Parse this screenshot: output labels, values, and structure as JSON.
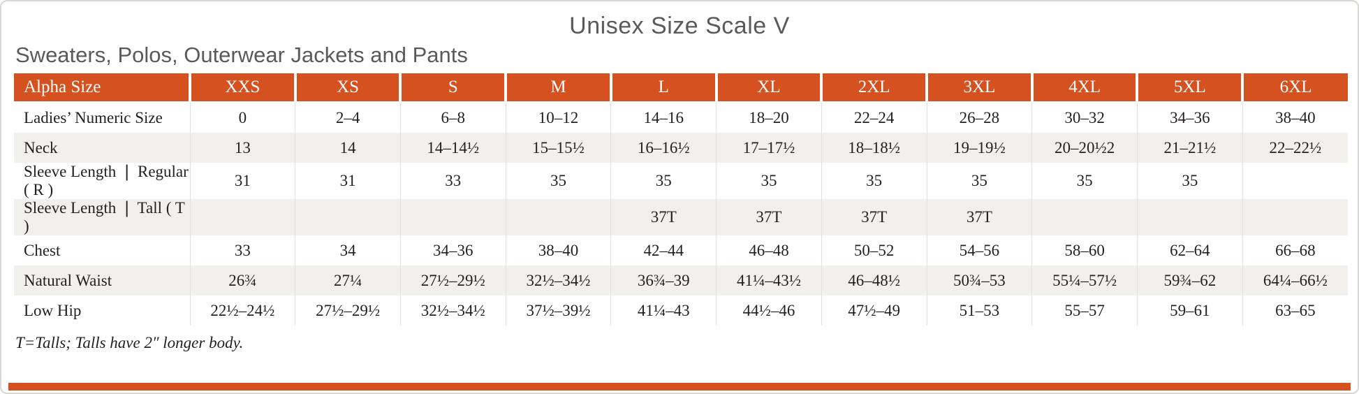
{
  "page": {
    "title": "Unisex Size Scale V",
    "subtitle": "Sweaters, Polos, Outerwear Jackets and Pants",
    "footnote": "T=Talls; Talls have 2″ longer body."
  },
  "colors": {
    "accent_orange": "#d5511f",
    "row_alternate": "#f2f0ed",
    "body_text": "#231f20",
    "heading_gray": "#595a5c"
  },
  "table": {
    "header": [
      "Alpha Size",
      "XXS",
      "XS",
      "S",
      "M",
      "L",
      "XL",
      "2XL",
      "3XL",
      "4XL",
      "5XL",
      "6XL"
    ],
    "rows": [
      {
        "label": "Ladies’ Numeric Size",
        "values": [
          "0",
          "2–4",
          "6–8",
          "10–12",
          "14–16",
          "18–20",
          "22–24",
          "26–28",
          "30–32",
          "34–36",
          "38–40"
        ]
      },
      {
        "label": "Neck",
        "values": [
          "13",
          "14",
          "14–14½",
          "15–15½",
          "16–16½",
          "17–17½",
          "18–18½",
          "19–19½",
          "20–20½2",
          "21–21½",
          "22–22½"
        ]
      },
      {
        "label": "Sleeve Length ❘ Regular ( R )",
        "values": [
          "31",
          "31",
          "33",
          "35",
          "35",
          "35",
          "35",
          "35",
          "35",
          "35",
          ""
        ]
      },
      {
        "label": "Sleeve Length ❘ Tall ( T )",
        "values": [
          "",
          "",
          "",
          "",
          "37T",
          "37T",
          "37T",
          "37T",
          "",
          "",
          ""
        ]
      },
      {
        "label": "Chest",
        "values": [
          "33",
          "34",
          "34–36",
          "38–40",
          "42–44",
          "46–48",
          "50–52",
          "54–56",
          "58–60",
          "62–64",
          "66–68"
        ]
      },
      {
        "label": "Natural Waist",
        "values": [
          "26¾",
          "27¼",
          "27½–29½",
          "32½–34½",
          "36¾–39",
          "41¼–43½",
          "46–48½",
          "50¾–53",
          "55¼–57½",
          "59¾–62",
          "64¼–66½"
        ]
      },
      {
        "label": "Low Hip",
        "values": [
          "22½–24½",
          "27½–29½",
          "32½–34½",
          "37½–39½",
          "41¼–43",
          "44½–46",
          "47½–49",
          "51–53",
          "55–57",
          "59–61",
          "63–65"
        ]
      }
    ]
  }
}
